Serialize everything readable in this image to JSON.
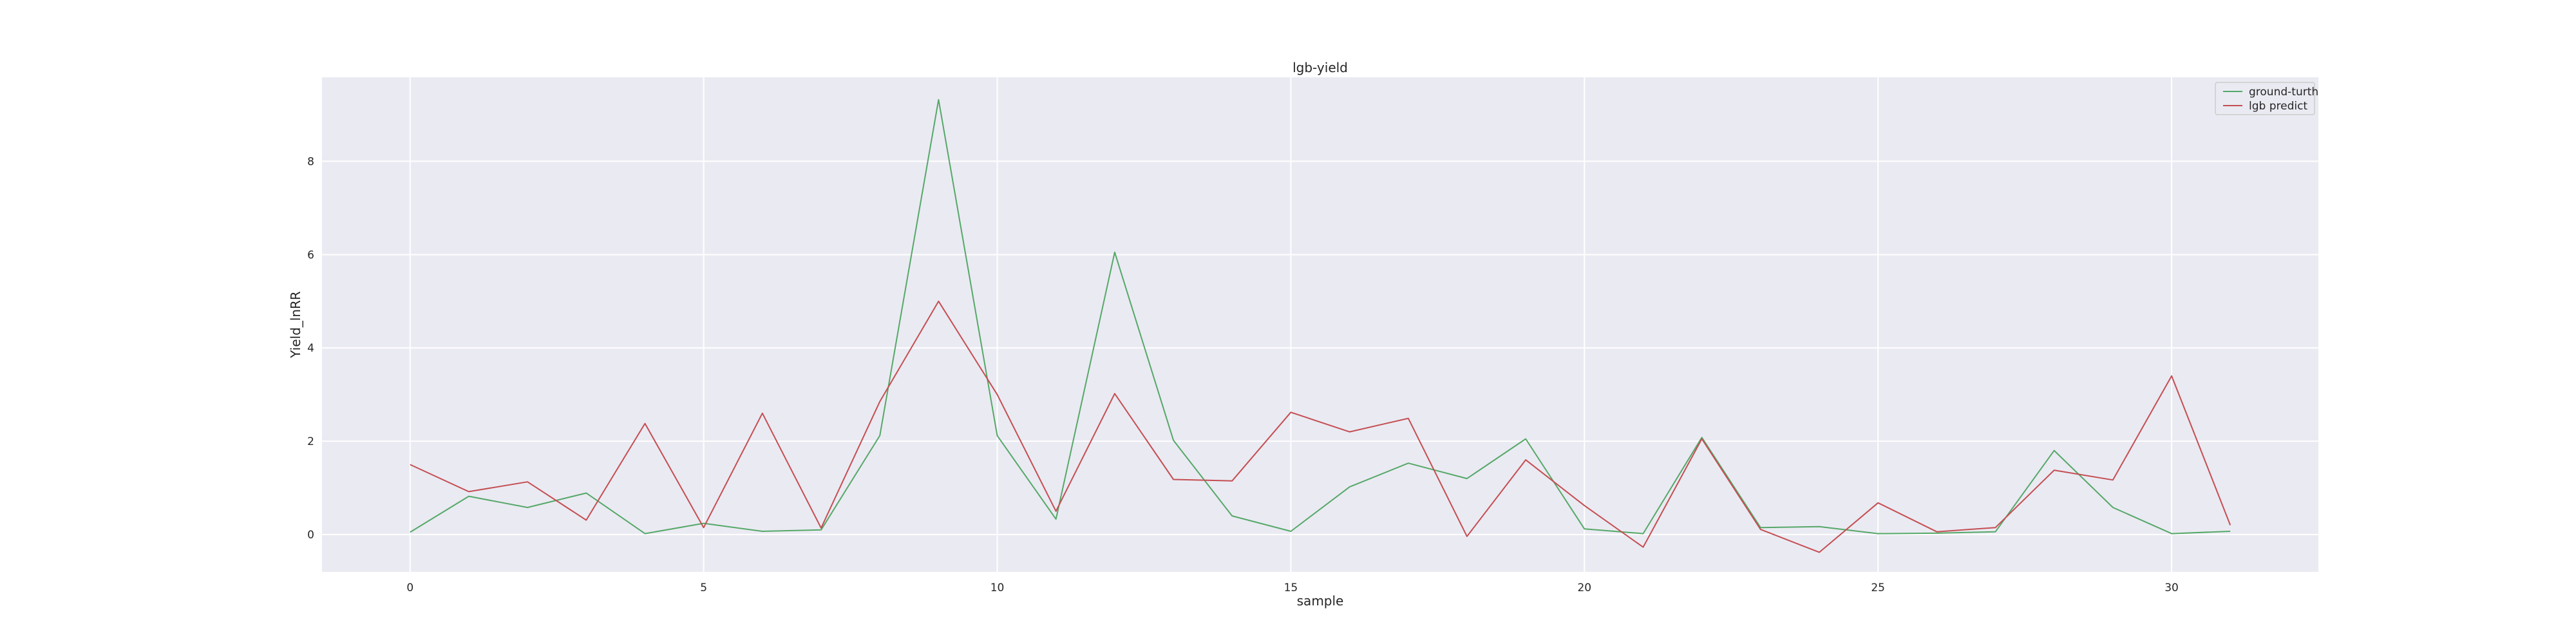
{
  "chart_data": {
    "type": "line",
    "title": "lgb-yield",
    "xlabel": "sample",
    "ylabel": "Yield_lnRR",
    "xlim": [
      -1.5,
      32.5
    ],
    "ylim": [
      -0.8,
      9.8
    ],
    "xticks": [
      0,
      5,
      10,
      15,
      20,
      25,
      30
    ],
    "yticks": [
      0,
      2,
      4,
      6,
      8
    ],
    "grid": true,
    "legend": "top-right",
    "x": [
      0,
      1,
      2,
      3,
      4,
      5,
      6,
      7,
      8,
      9,
      10,
      11,
      12,
      13,
      14,
      15,
      16,
      17,
      18,
      19,
      20,
      21,
      22,
      23,
      24,
      25,
      26,
      27,
      28,
      29,
      30,
      31
    ],
    "series": [
      {
        "name": "ground-turth",
        "color": "#55a868",
        "values": [
          0.05,
          0.82,
          0.58,
          0.89,
          0.02,
          0.24,
          0.07,
          0.1,
          2.12,
          9.32,
          2.12,
          0.33,
          6.05,
          2.02,
          0.4,
          0.07,
          1.02,
          1.53,
          1.2,
          2.05,
          0.12,
          0.02,
          2.08,
          0.15,
          0.17,
          0.02,
          0.03,
          0.06,
          1.8,
          0.58,
          0.02,
          0.07
        ]
      },
      {
        "name": "lgb predict",
        "color": "#c44e52",
        "values": [
          1.5,
          0.92,
          1.13,
          0.31,
          2.38,
          0.15,
          2.6,
          0.14,
          2.85,
          5.0,
          3.0,
          0.5,
          3.02,
          1.18,
          1.15,
          2.62,
          2.2,
          2.49,
          -0.04,
          1.6,
          0.62,
          -0.27,
          2.05,
          0.11,
          -0.38,
          0.68,
          0.06,
          0.15,
          1.38,
          1.17,
          3.4,
          0.2
        ]
      }
    ]
  }
}
